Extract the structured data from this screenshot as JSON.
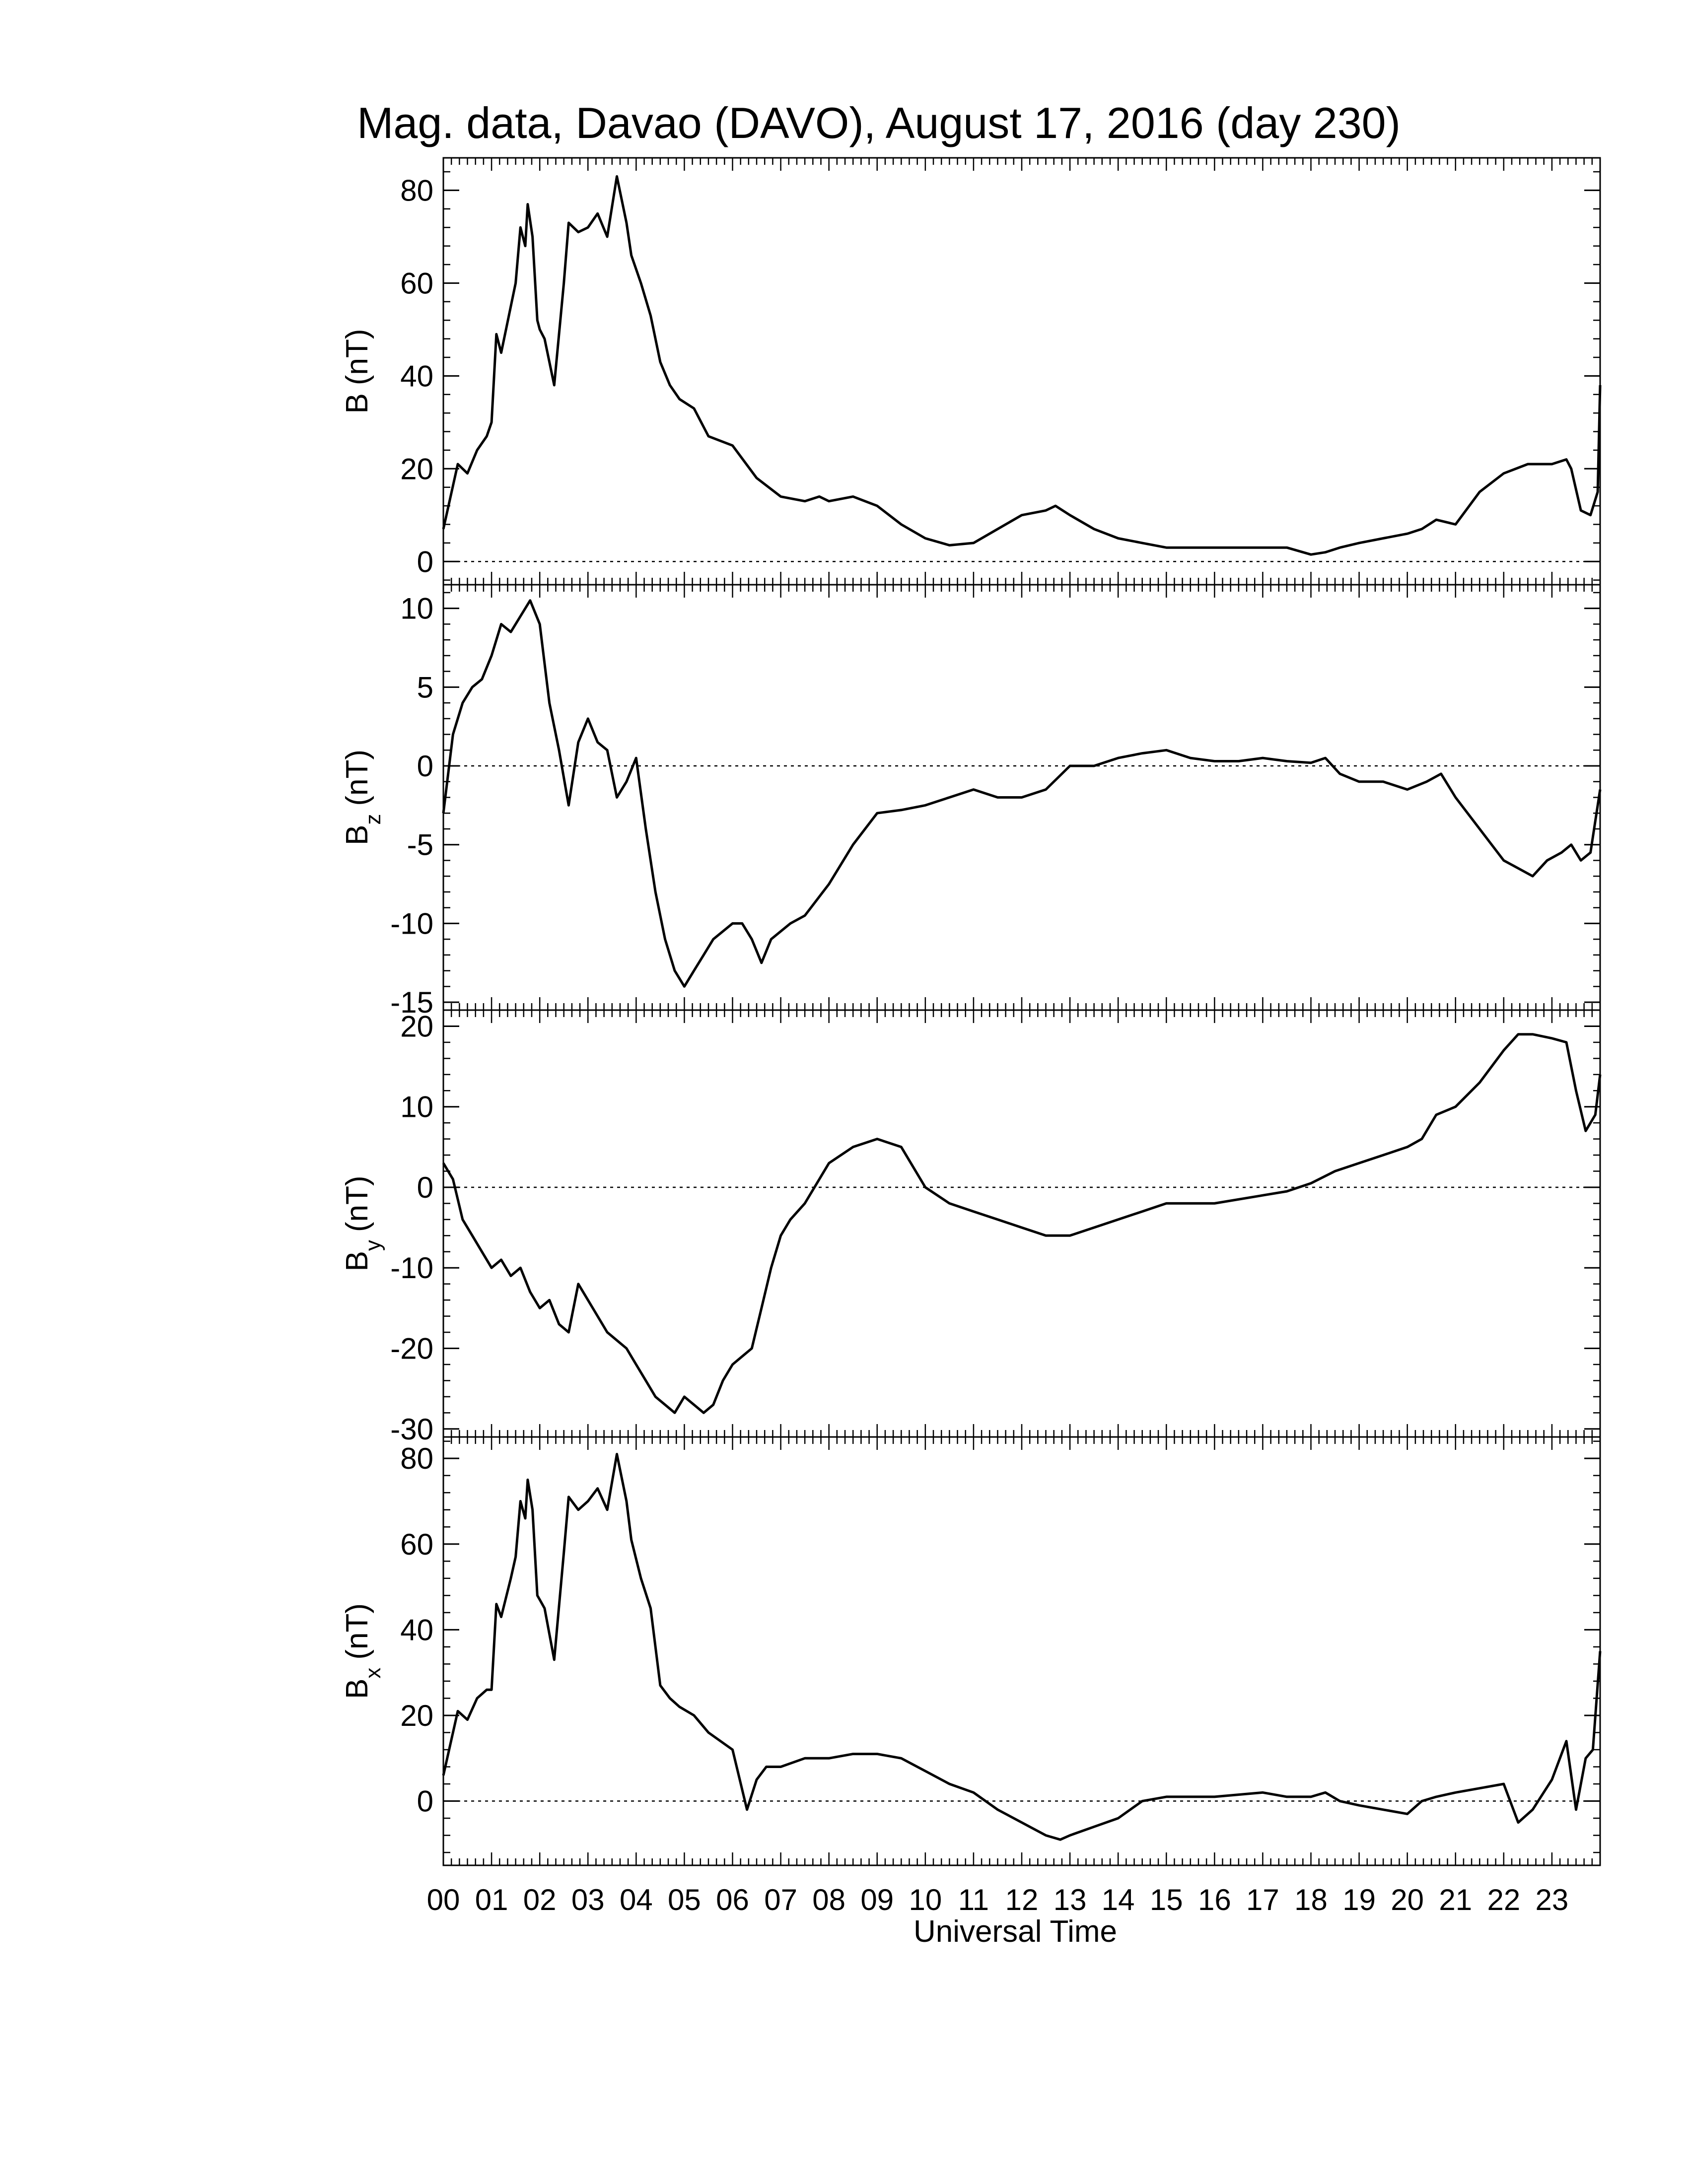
{
  "title": "Mag. data, Davao (DAVO), August 17, 2016 (day 230)",
  "xlabel": "Universal Time",
  "hour_labels": [
    "00",
    "01",
    "02",
    "03",
    "04",
    "05",
    "06",
    "07",
    "08",
    "09",
    "10",
    "11",
    "12",
    "13",
    "14",
    "15",
    "16",
    "17",
    "18",
    "19",
    "20",
    "21",
    "22",
    "23"
  ],
  "chart_data": [
    {
      "type": "line",
      "panel": "B",
      "ylabel": "B (nT)",
      "ylabel_main": "B",
      "ylabel_sub": "",
      "ylabel_unit": "(nT)",
      "ylim": [
        -5,
        87
      ],
      "yticks": [
        0,
        20,
        40,
        60,
        80
      ],
      "zero_line": true,
      "x": [
        0.0,
        0.3,
        0.5,
        0.7,
        0.9,
        1.0,
        1.1,
        1.2,
        1.4,
        1.5,
        1.6,
        1.7,
        1.75,
        1.85,
        1.95,
        2.0,
        2.1,
        2.3,
        2.5,
        2.6,
        2.8,
        3.0,
        3.2,
        3.4,
        3.6,
        3.8,
        3.9,
        4.1,
        4.3,
        4.5,
        4.7,
        4.9,
        5.2,
        5.5,
        6.0,
        6.5,
        7.0,
        7.5,
        7.8,
        8.0,
        8.5,
        9.0,
        9.5,
        10.0,
        10.5,
        11.0,
        11.5,
        12.0,
        12.5,
        12.7,
        13.0,
        13.5,
        14.0,
        14.5,
        15.0,
        16.0,
        17.0,
        17.5,
        18.0,
        18.3,
        18.6,
        19.0,
        19.5,
        20.0,
        20.3,
        20.6,
        21.0,
        21.5,
        22.0,
        22.5,
        23.0,
        23.3,
        23.4,
        23.6,
        23.8,
        23.95,
        24.0
      ],
      "y": [
        7,
        21,
        19,
        24,
        27,
        30,
        49,
        45,
        55,
        60,
        72,
        68,
        77,
        70,
        52,
        50,
        48,
        38,
        60,
        73,
        71,
        72,
        75,
        70,
        83,
        73,
        66,
        60,
        53,
        43,
        38,
        35,
        33,
        27,
        25,
        18,
        14,
        13,
        14,
        13,
        14,
        12,
        8,
        5,
        3.5,
        4,
        7,
        10,
        11,
        12,
        10,
        7,
        5,
        4,
        3,
        3,
        3,
        3,
        1.5,
        2,
        3,
        4,
        5,
        6,
        7,
        9,
        8,
        15,
        19,
        21,
        21,
        22,
        20,
        11,
        10,
        15,
        38
      ]
    },
    {
      "type": "line",
      "panel": "Bz",
      "ylabel": "Bz (nT)",
      "ylabel_main": "B",
      "ylabel_sub": "z",
      "ylabel_unit": "(nT)",
      "ylim": [
        -15.5,
        11.5
      ],
      "yticks": [
        -15,
        -10,
        -5,
        0,
        5,
        10
      ],
      "zero_line": true,
      "x": [
        0.0,
        0.2,
        0.4,
        0.6,
        0.8,
        1.0,
        1.2,
        1.4,
        1.6,
        1.8,
        2.0,
        2.2,
        2.4,
        2.6,
        2.8,
        3.0,
        3.2,
        3.4,
        3.6,
        3.8,
        4.0,
        4.2,
        4.4,
        4.6,
        4.8,
        5.0,
        5.2,
        5.4,
        5.6,
        5.8,
        6.0,
        6.2,
        6.4,
        6.6,
        6.8,
        7.0,
        7.2,
        7.5,
        8.0,
        8.5,
        9.0,
        9.5,
        10.0,
        10.5,
        11.0,
        11.5,
        12.0,
        12.5,
        13.0,
        13.5,
        14.0,
        14.5,
        15.0,
        15.5,
        16.0,
        16.5,
        17.0,
        17.5,
        18.0,
        18.3,
        18.6,
        19.0,
        19.5,
        20.0,
        20.4,
        20.7,
        21.0,
        21.5,
        22.0,
        22.3,
        22.6,
        22.9,
        23.2,
        23.4,
        23.6,
        23.8,
        24.0
      ],
      "y": [
        -3,
        2,
        4,
        5,
        5.5,
        7,
        9,
        8.5,
        9.5,
        10.5,
        9,
        4,
        1,
        -2.5,
        1.5,
        3,
        1.5,
        1,
        -2,
        -1,
        0.5,
        -4,
        -8,
        -11,
        -13,
        -14,
        -13,
        -12,
        -11,
        -10.5,
        -10,
        -10,
        -11,
        -12.5,
        -11,
        -10.5,
        -10,
        -9.5,
        -7.5,
        -5,
        -3,
        -2.8,
        -2.5,
        -2,
        -1.5,
        -2,
        -2,
        -1.5,
        0,
        0,
        0.5,
        0.8,
        1,
        0.5,
        0.3,
        0.3,
        0.5,
        0.3,
        0.2,
        0.5,
        -0.5,
        -1,
        -1,
        -1.5,
        -1,
        -0.5,
        -2,
        -4,
        -6,
        -6.5,
        -7,
        -6,
        -5.5,
        -5,
        -6,
        -5.5,
        -1.5
      ]
    },
    {
      "type": "line",
      "panel": "By",
      "ylabel": "By (nT)",
      "ylabel_main": "B",
      "ylabel_sub": "y",
      "ylabel_unit": "(nT)",
      "ylim": [
        -31,
        22
      ],
      "yticks": [
        -30,
        -20,
        -10,
        0,
        10,
        20
      ],
      "zero_line": true,
      "x": [
        0.0,
        0.2,
        0.4,
        0.6,
        0.8,
        1.0,
        1.2,
        1.4,
        1.6,
        1.8,
        2.0,
        2.2,
        2.4,
        2.6,
        2.8,
        3.0,
        3.2,
        3.4,
        3.6,
        3.8,
        4.0,
        4.2,
        4.4,
        4.6,
        4.8,
        5.0,
        5.2,
        5.4,
        5.6,
        5.8,
        6.0,
        6.2,
        6.4,
        6.6,
        6.8,
        7.0,
        7.2,
        7.5,
        8.0,
        8.5,
        9.0,
        9.5,
        10.0,
        10.5,
        11.0,
        11.5,
        12.0,
        12.5,
        13.0,
        13.5,
        14.0,
        14.5,
        15.0,
        16.0,
        17.0,
        17.5,
        18.0,
        18.5,
        19.0,
        19.5,
        20.0,
        20.3,
        20.6,
        21.0,
        21.5,
        22.0,
        22.3,
        22.6,
        23.0,
        23.3,
        23.5,
        23.7,
        23.9,
        24.0
      ],
      "y": [
        3,
        1,
        -4,
        -6,
        -8,
        -10,
        -9,
        -11,
        -10,
        -13,
        -15,
        -14,
        -17,
        -18,
        -12,
        -14,
        -16,
        -18,
        -19,
        -20,
        -22,
        -24,
        -26,
        -27,
        -28,
        -26,
        -27,
        -28,
        -27,
        -24,
        -22,
        -21,
        -20,
        -15,
        -10,
        -6,
        -4,
        -2,
        3,
        5,
        6,
        5,
        0,
        -2,
        -3,
        -4,
        -5,
        -6,
        -6,
        -5,
        -4,
        -3,
        -2,
        -2,
        -1,
        -0.5,
        0.5,
        2,
        3,
        4,
        5,
        6,
        9,
        10,
        13,
        17,
        19,
        19,
        18.5,
        18,
        12,
        7,
        9,
        14
      ]
    },
    {
      "type": "line",
      "panel": "Bx",
      "ylabel": "Bx (nT)",
      "ylabel_main": "B",
      "ylabel_sub": "x",
      "ylabel_unit": "(nT)",
      "ylim": [
        -15,
        85
      ],
      "yticks": [
        0,
        20,
        40,
        60,
        80
      ],
      "zero_line": true,
      "x": [
        0.0,
        0.3,
        0.5,
        0.7,
        0.9,
        1.0,
        1.1,
        1.2,
        1.4,
        1.5,
        1.6,
        1.7,
        1.75,
        1.85,
        1.95,
        2.0,
        2.1,
        2.3,
        2.5,
        2.6,
        2.8,
        3.0,
        3.2,
        3.4,
        3.6,
        3.8,
        3.9,
        4.1,
        4.3,
        4.5,
        4.7,
        4.9,
        5.2,
        5.5,
        6.0,
        6.3,
        6.5,
        6.7,
        7.0,
        7.5,
        8.0,
        8.5,
        9.0,
        9.5,
        10.0,
        10.5,
        11.0,
        11.5,
        12.0,
        12.5,
        12.8,
        13.0,
        13.5,
        14.0,
        14.5,
        15.0,
        16.0,
        17.0,
        17.5,
        18.0,
        18.3,
        18.6,
        19.0,
        19.5,
        20.0,
        20.3,
        20.6,
        21.0,
        21.5,
        22.0,
        22.3,
        22.6,
        23.0,
        23.3,
        23.5,
        23.7,
        23.85,
        24.0
      ],
      "y": [
        6,
        21,
        19,
        24,
        26,
        26,
        46,
        43,
        52,
        57,
        70,
        66,
        75,
        68,
        48,
        47,
        45,
        33,
        58,
        71,
        68,
        70,
        73,
        68,
        81,
        70,
        61,
        52,
        45,
        27,
        24,
        22,
        20,
        16,
        12,
        -2,
        5,
        8,
        8,
        10,
        10,
        11,
        11,
        10,
        7,
        4,
        2,
        -2,
        -5,
        -8,
        -9,
        -8,
        -6,
        -4,
        0,
        1,
        1,
        2,
        1,
        1,
        2,
        0,
        -1,
        -2,
        -3,
        0,
        1,
        2,
        3,
        4,
        -5,
        -2,
        5,
        14,
        -2,
        10,
        12,
        35
      ]
    }
  ]
}
